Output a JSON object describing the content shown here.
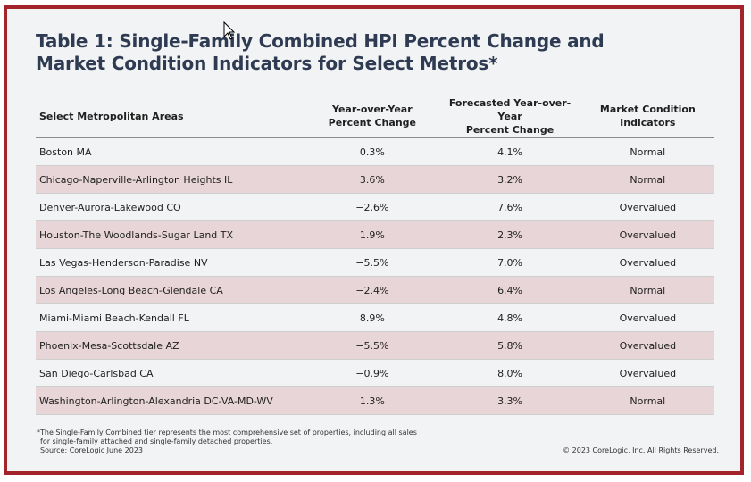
{
  "title": {
    "line1": "Table 1: Single-Family Combined HPI Percent Change and",
    "line2": "Market Condition Indicators for Select Metros*"
  },
  "table": {
    "headers": {
      "area": "Select Metropolitan Areas",
      "yoy_line1": "Year-over-Year",
      "yoy_line2": "Percent Change",
      "forecast_line1": "Forecasted Year-over-Year",
      "forecast_line2": "Percent Change",
      "condition_line1": "Market Condition",
      "condition_line2": "Indicators"
    },
    "rows": [
      {
        "area": "Boston MA",
        "yoy": "0.3%",
        "forecast": "4.1%",
        "condition": "Normal"
      },
      {
        "area": "Chicago-Naperville-Arlington Heights IL",
        "yoy": "3.6%",
        "forecast": "3.2%",
        "condition": "Normal"
      },
      {
        "area": "Denver-Aurora-Lakewood CO",
        "yoy": "−2.6%",
        "forecast": "7.6%",
        "condition": "Overvalued"
      },
      {
        "area": "Houston-The Woodlands-Sugar Land TX",
        "yoy": "1.9%",
        "forecast": "2.3%",
        "condition": "Overvalued"
      },
      {
        "area": "Las Vegas-Henderson-Paradise NV",
        "yoy": "−5.5%",
        "forecast": "7.0%",
        "condition": "Overvalued"
      },
      {
        "area": "Los Angeles-Long Beach-Glendale CA",
        "yoy": "−2.4%",
        "forecast": "6.4%",
        "condition": "Normal"
      },
      {
        "area": "Miami-Miami Beach-Kendall FL",
        "yoy": "8.9%",
        "forecast": "4.8%",
        "condition": "Overvalued"
      },
      {
        "area": "Phoenix-Mesa-Scottsdale AZ",
        "yoy": "−5.5%",
        "forecast": "5.8%",
        "condition": "Overvalued"
      },
      {
        "area": "San Diego-Carlsbad CA",
        "yoy": "−0.9%",
        "forecast": "8.0%",
        "condition": "Overvalued"
      },
      {
        "area": "Washington-Arlington-Alexandria DC-VA-MD-WV",
        "yoy": "1.3%",
        "forecast": "3.3%",
        "condition": "Normal"
      }
    ]
  },
  "footnote": {
    "line1": "*The Single-Family Combined tier represents the most comprehensive set of properties, including all sales",
    "line2": "for single-family attached and single-family detached properties.",
    "line3": "Source: CoreLogic June 2023"
  },
  "copyright": "© 2023 CoreLogic, Inc. All Rights Reserved.",
  "colors": {
    "border": "#a3252b",
    "title": "#2f3b52",
    "stripe": "#e8d5d8",
    "background": "#f1f3f4"
  },
  "icons": {
    "cursor": "mouse-pointer-icon"
  }
}
